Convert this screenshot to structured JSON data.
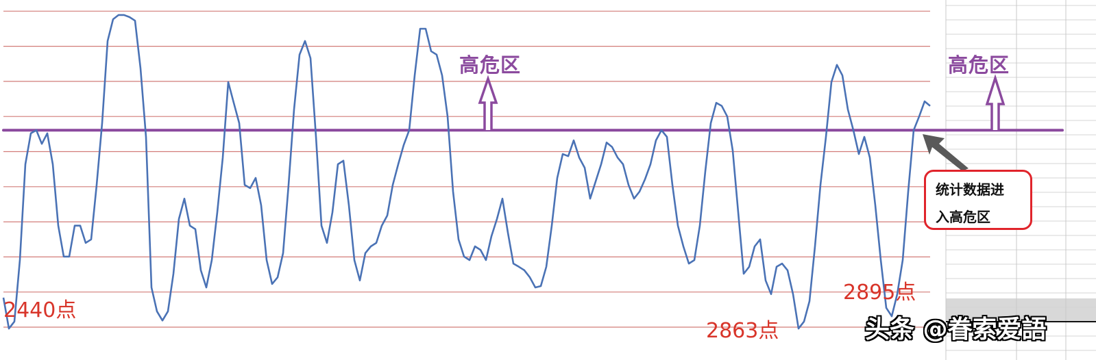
{
  "chart_data": {
    "type": "line",
    "title": "",
    "xlabel": "",
    "ylabel": "",
    "grid": "horizontal",
    "gridline_count": 10,
    "ylim": [
      0,
      9
    ],
    "threshold": 5.61,
    "colors": {
      "line": "#4a72b5",
      "grid": "#d27c78",
      "threshold": "#8b4a9e",
      "annotation": "#d8352a"
    },
    "series": [
      {
        "values": [
          0.84,
          -0.04,
          0.16,
          1.91,
          4.64,
          5.52,
          5.61,
          5.22,
          5.52,
          4.64,
          2.89,
          2.01,
          2.01,
          2.89,
          2.89,
          2.4,
          2.5,
          4.05,
          5.81,
          8.15,
          8.77,
          8.89,
          8.89,
          8.83,
          8.73,
          7.37,
          5.42,
          1.13,
          0.45,
          0.19,
          0.45,
          1.52,
          3.08,
          3.66,
          2.89,
          2.79,
          1.62,
          1.13,
          1.91,
          3.27,
          4.83,
          6.98,
          6.39,
          5.81,
          4.05,
          3.96,
          4.25,
          3.47,
          1.91,
          1.23,
          1.42,
          2.11,
          4.05,
          6.2,
          7.76,
          8.15,
          7.66,
          5.42,
          2.89,
          2.4,
          3.27,
          4.64,
          4.74,
          3.47,
          1.91,
          1.33,
          2.11,
          2.3,
          2.4,
          2.89,
          3.18,
          4.05,
          4.64,
          5.19,
          5.61,
          7.17,
          8.5,
          8.5,
          7.86,
          7.76,
          7.17,
          6.0,
          3.86,
          2.5,
          2.01,
          1.91,
          2.3,
          2.2,
          1.91,
          2.59,
          3.08,
          3.66,
          2.69,
          1.81,
          1.72,
          1.62,
          1.42,
          1.13,
          1.17,
          1.72,
          2.89,
          4.25,
          4.93,
          4.87,
          5.32,
          4.83,
          4.54,
          3.66,
          4.15,
          4.64,
          5.26,
          5.13,
          4.83,
          4.64,
          4.05,
          3.66,
          3.86,
          4.21,
          4.64,
          5.32,
          5.61,
          5.42,
          4.05,
          2.89,
          2.3,
          1.81,
          1.91,
          2.89,
          4.44,
          5.81,
          6.39,
          6.3,
          6.0,
          5.03,
          3.27,
          1.52,
          1.72,
          2.3,
          2.5,
          1.33,
          0.94,
          1.72,
          1.81,
          1.62,
          0.94,
          -0.04,
          0.16,
          0.74,
          2.3,
          4.05,
          5.42,
          6.98,
          7.47,
          7.17,
          6.2,
          5.61,
          4.93,
          5.42,
          4.83,
          3.47,
          1.91,
          0.55,
          0.31,
          0.94,
          1.91,
          3.86,
          5.61,
          6.0,
          6.43,
          6.3
        ]
      }
    ],
    "annotations": {
      "zone_label_1": "高危区",
      "zone_label_2": "高危区",
      "point_label_1": "2440点",
      "point_label_2": "2863点",
      "point_label_3": "2895点",
      "callout_line1": "统计数据进",
      "callout_line2": "入高危区"
    }
  },
  "watermark": "头条 @眷索爱語"
}
